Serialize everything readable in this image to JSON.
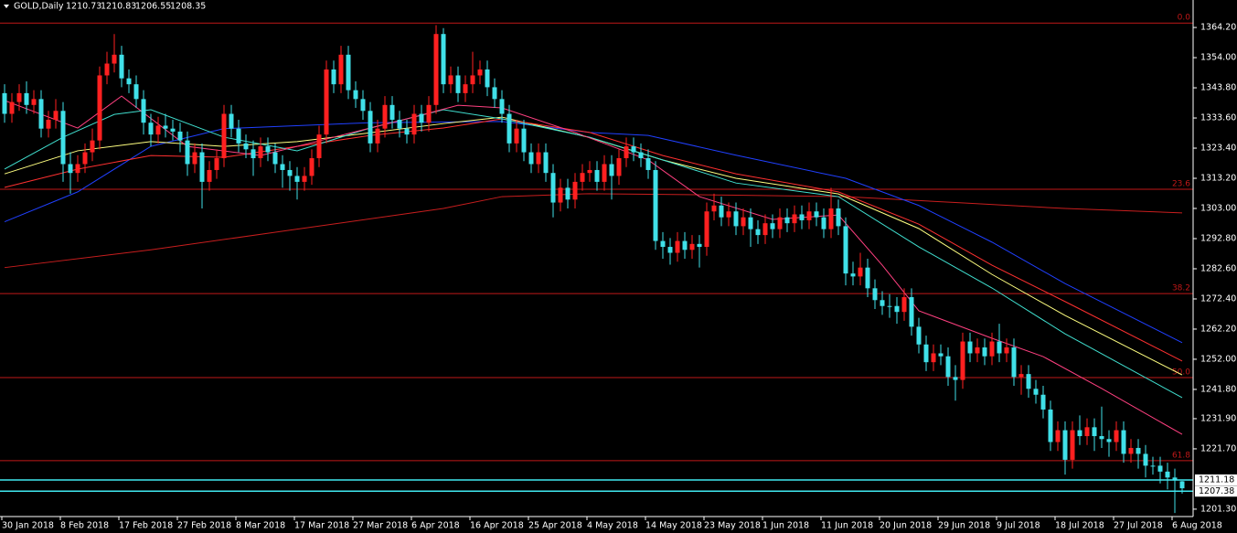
{
  "chart_data": {
    "type": "candlestick",
    "symbol": "GOLD,Daily",
    "bull_color": "#ff2020",
    "bear_color": "#40e0e8",
    "categories": [
      "30 Jan 2018",
      null,
      null,
      null,
      null,
      null,
      null,
      null,
      "8 Feb 2018",
      null,
      null,
      null,
      null,
      null,
      null,
      null,
      "17 Feb 2018",
      null,
      null,
      null,
      null,
      null,
      null,
      null,
      "27 Feb 2018",
      null,
      null,
      null,
      null,
      null,
      null,
      null,
      "8 Mar 2018",
      null,
      null,
      null,
      null,
      null,
      null,
      null,
      "17 Mar 2018",
      null,
      null,
      null,
      null,
      null,
      null,
      null,
      "27 Mar 2018",
      null,
      null,
      null,
      null,
      null,
      null,
      null,
      "6 Apr 2018",
      null,
      null,
      null,
      null,
      null,
      null,
      null,
      "16 Apr 2018",
      null,
      null,
      null,
      null,
      null,
      null,
      null,
      "25 Apr 2018",
      null,
      null,
      null,
      null,
      null,
      null,
      null,
      "4 May 2018",
      null,
      null,
      null,
      null,
      null,
      null,
      null,
      "14 May 2018",
      null,
      null,
      null,
      null,
      null,
      null,
      null,
      "23 May 2018",
      null,
      null,
      null,
      null,
      null,
      null,
      null,
      "1 Jun 2018",
      null,
      null,
      null,
      null,
      null,
      null,
      null,
      "11 Jun 2018",
      null,
      null,
      null,
      null,
      null,
      null,
      null,
      "20 Jun 2018",
      null,
      null,
      null,
      null,
      null,
      null,
      null,
      "29 Jun 2018",
      null,
      null,
      null,
      null,
      null,
      null,
      null,
      "9 Jul 2018",
      null,
      null,
      null,
      null,
      null,
      null,
      null,
      "18 Jul 2018",
      null,
      null,
      null,
      null,
      null,
      null,
      null,
      "27 Jul 2018",
      null,
      null,
      null,
      null,
      null,
      null,
      null,
      "6 Aug 2018",
      null
    ],
    "ohlc": [
      [
        1342,
        1345,
        1332,
        1335
      ],
      [
        1335,
        1342,
        1332,
        1339
      ],
      [
        1339,
        1345,
        1336,
        1342
      ],
      [
        1342,
        1346,
        1335,
        1338
      ],
      [
        1338,
        1343,
        1335,
        1340
      ],
      [
        1340,
        1343,
        1327,
        1330
      ],
      [
        1330,
        1336,
        1327,
        1333
      ],
      [
        1333,
        1340,
        1330,
        1336
      ],
      [
        1336,
        1339,
        1312,
        1318
      ],
      [
        1318,
        1322,
        1308,
        1315
      ],
      [
        1315,
        1321,
        1312,
        1318
      ],
      [
        1318,
        1325,
        1315,
        1322
      ],
      [
        1322,
        1330,
        1319,
        1326
      ],
      [
        1326,
        1351,
        1323,
        1348
      ],
      [
        1348,
        1356,
        1345,
        1352
      ],
      [
        1352,
        1362,
        1349,
        1355
      ],
      [
        1355,
        1358,
        1344,
        1347
      ],
      [
        1347,
        1350,
        1342,
        1345
      ],
      [
        1345,
        1348,
        1337,
        1340
      ],
      [
        1340,
        1343,
        1328,
        1332
      ],
      [
        1332,
        1335,
        1324,
        1328
      ],
      [
        1328,
        1334,
        1325,
        1331
      ],
      [
        1331,
        1335,
        1327,
        1330
      ],
      [
        1330,
        1333,
        1326,
        1329
      ],
      [
        1329,
        1332,
        1322,
        1326
      ],
      [
        1326,
        1329,
        1314,
        1318
      ],
      [
        1318,
        1325,
        1315,
        1322
      ],
      [
        1322,
        1325,
        1303,
        1312
      ],
      [
        1312,
        1319,
        1309,
        1316
      ],
      [
        1316,
        1323,
        1313,
        1320
      ],
      [
        1320,
        1338,
        1317,
        1335
      ],
      [
        1335,
        1338,
        1327,
        1330
      ],
      [
        1330,
        1333,
        1322,
        1325
      ],
      [
        1325,
        1328,
        1320,
        1323
      ],
      [
        1323,
        1326,
        1314,
        1320
      ],
      [
        1320,
        1327,
        1317,
        1324
      ],
      [
        1324,
        1327,
        1319,
        1322
      ],
      [
        1322,
        1325,
        1315,
        1318
      ],
      [
        1318,
        1321,
        1310,
        1316
      ],
      [
        1316,
        1319,
        1309,
        1314
      ],
      [
        1314,
        1317,
        1306,
        1312
      ],
      [
        1312,
        1317,
        1309,
        1314
      ],
      [
        1314,
        1323,
        1311,
        1320
      ],
      [
        1320,
        1331,
        1317,
        1328
      ],
      [
        1328,
        1353,
        1325,
        1350
      ],
      [
        1350,
        1353,
        1342,
        1345
      ],
      [
        1345,
        1358,
        1342,
        1355
      ],
      [
        1355,
        1358,
        1340,
        1343
      ],
      [
        1343,
        1346,
        1337,
        1340
      ],
      [
        1340,
        1343,
        1333,
        1336
      ],
      [
        1336,
        1339,
        1322,
        1325
      ],
      [
        1325,
        1333,
        1322,
        1330
      ],
      [
        1330,
        1341,
        1327,
        1338
      ],
      [
        1338,
        1341,
        1330,
        1333
      ],
      [
        1333,
        1336,
        1327,
        1330
      ],
      [
        1330,
        1333,
        1325,
        1328
      ],
      [
        1328,
        1338,
        1325,
        1335
      ],
      [
        1335,
        1338,
        1329,
        1332
      ],
      [
        1332,
        1341,
        1329,
        1338
      ],
      [
        1338,
        1365,
        1335,
        1362
      ],
      [
        1362,
        1364,
        1342,
        1345
      ],
      [
        1345,
        1351,
        1342,
        1348
      ],
      [
        1348,
        1351,
        1339,
        1342
      ],
      [
        1342,
        1348,
        1339,
        1345
      ],
      [
        1345,
        1356,
        1342,
        1348
      ],
      [
        1348,
        1353,
        1345,
        1350
      ],
      [
        1350,
        1353,
        1341,
        1344
      ],
      [
        1344,
        1347,
        1337,
        1340
      ],
      [
        1340,
        1343,
        1332,
        1335
      ],
      [
        1335,
        1338,
        1322,
        1325
      ],
      [
        1325,
        1333,
        1322,
        1330
      ],
      [
        1330,
        1333,
        1319,
        1322
      ],
      [
        1322,
        1325,
        1315,
        1318
      ],
      [
        1318,
        1325,
        1315,
        1322
      ],
      [
        1322,
        1325,
        1312,
        1315
      ],
      [
        1315,
        1318,
        1300,
        1305
      ],
      [
        1305,
        1313,
        1302,
        1310
      ],
      [
        1310,
        1313,
        1303,
        1306
      ],
      [
        1306,
        1315,
        1303,
        1312
      ],
      [
        1312,
        1318,
        1309,
        1315
      ],
      [
        1315,
        1319,
        1312,
        1316
      ],
      [
        1316,
        1319,
        1309,
        1312
      ],
      [
        1312,
        1321,
        1309,
        1318
      ],
      [
        1318,
        1321,
        1306,
        1314
      ],
      [
        1314,
        1323,
        1311,
        1320
      ],
      [
        1320,
        1327,
        1317,
        1324
      ],
      [
        1324,
        1327,
        1319,
        1322
      ],
      [
        1322,
        1325,
        1317,
        1320
      ],
      [
        1320,
        1323,
        1313,
        1316
      ],
      [
        1316,
        1319,
        1289,
        1292
      ],
      [
        1292,
        1295,
        1286,
        1290
      ],
      [
        1290,
        1293,
        1284,
        1288
      ],
      [
        1288,
        1295,
        1285,
        1292
      ],
      [
        1292,
        1295,
        1286,
        1289
      ],
      [
        1289,
        1294,
        1286,
        1291
      ],
      [
        1291,
        1294,
        1283,
        1290
      ],
      [
        1290,
        1305,
        1287,
        1302
      ],
      [
        1302,
        1308,
        1299,
        1304
      ],
      [
        1304,
        1307,
        1297,
        1300
      ],
      [
        1300,
        1305,
        1297,
        1302
      ],
      [
        1302,
        1305,
        1294,
        1297
      ],
      [
        1297,
        1303,
        1294,
        1300
      ],
      [
        1300,
        1303,
        1290,
        1296
      ],
      [
        1296,
        1299,
        1291,
        1294
      ],
      [
        1294,
        1301,
        1291,
        1298
      ],
      [
        1298,
        1301,
        1293,
        1296
      ],
      [
        1296,
        1303,
        1293,
        1300
      ],
      [
        1300,
        1303,
        1295,
        1298
      ],
      [
        1298,
        1304,
        1295,
        1301
      ],
      [
        1301,
        1304,
        1296,
        1299
      ],
      [
        1299,
        1305,
        1296,
        1302
      ],
      [
        1302,
        1305,
        1297,
        1300
      ],
      [
        1300,
        1303,
        1293,
        1296
      ],
      [
        1296,
        1310,
        1293,
        1303
      ],
      [
        1303,
        1306,
        1294,
        1297
      ],
      [
        1297,
        1300,
        1277,
        1281
      ],
      [
        1281,
        1285,
        1277,
        1280
      ],
      [
        1280,
        1288,
        1277,
        1283
      ],
      [
        1283,
        1286,
        1273,
        1276
      ],
      [
        1276,
        1279,
        1269,
        1272
      ],
      [
        1272,
        1275,
        1267,
        1270
      ],
      [
        1270,
        1274,
        1266,
        1270
      ],
      [
        1270,
        1273,
        1264,
        1268
      ],
      [
        1268,
        1276,
        1265,
        1273
      ],
      [
        1273,
        1276,
        1260,
        1263
      ],
      [
        1263,
        1266,
        1254,
        1257
      ],
      [
        1257,
        1260,
        1248,
        1251
      ],
      [
        1251,
        1257,
        1248,
        1254
      ],
      [
        1254,
        1257,
        1250,
        1253
      ],
      [
        1253,
        1256,
        1243,
        1246
      ],
      [
        1246,
        1250,
        1238,
        1245
      ],
      [
        1245,
        1261,
        1242,
        1258
      ],
      [
        1258,
        1261,
        1251,
        1254
      ],
      [
        1254,
        1259,
        1251,
        1256
      ],
      [
        1256,
        1259,
        1250,
        1253
      ],
      [
        1253,
        1261,
        1250,
        1258
      ],
      [
        1258,
        1264,
        1251,
        1254
      ],
      [
        1254,
        1259,
        1251,
        1256
      ],
      [
        1256,
        1259,
        1243,
        1246
      ],
      [
        1246,
        1250,
        1240,
        1247
      ],
      [
        1247,
        1250,
        1239,
        1242
      ],
      [
        1242,
        1245,
        1237,
        1240
      ],
      [
        1240,
        1243,
        1232,
        1235
      ],
      [
        1235,
        1238,
        1221,
        1224
      ],
      [
        1224,
        1231,
        1221,
        1228
      ],
      [
        1228,
        1231,
        1213,
        1218
      ],
      [
        1218,
        1231,
        1215,
        1228
      ],
      [
        1228,
        1233,
        1223,
        1226
      ],
      [
        1226,
        1232,
        1223,
        1229
      ],
      [
        1229,
        1232,
        1221,
        1226
      ],
      [
        1226,
        1236,
        1222,
        1225
      ],
      [
        1225,
        1228,
        1219,
        1224
      ],
      [
        1224,
        1231,
        1221,
        1228
      ],
      [
        1228,
        1231,
        1217,
        1220
      ],
      [
        1220,
        1225,
        1217,
        1222
      ],
      [
        1222,
        1225,
        1215,
        1220
      ],
      [
        1220,
        1223,
        1212,
        1216
      ],
      [
        1216,
        1219,
        1213,
        1216
      ],
      [
        1216,
        1219,
        1210,
        1214
      ],
      [
        1214,
        1217,
        1208,
        1212
      ],
      [
        1212,
        1215,
        1200,
        1211
      ],
      [
        1210.73,
        1210.83,
        1206.55,
        1208.35
      ]
    ],
    "series": [
      {
        "color": "#c81e1e",
        "x": [
          0,
          20,
          40,
          60,
          68,
          80,
          100,
          115,
          130,
          145,
          161
        ],
        "values": [
          1283,
          1289,
          1296,
          1303,
          1307,
          1308,
          1307.5,
          1307,
          1305,
          1303,
          1301.5
        ]
      },
      {
        "color": "#2040ff",
        "x": [
          0,
          10,
          20,
          30,
          50,
          68,
          80,
          88,
          100,
          115,
          125,
          135,
          145,
          161
        ],
        "values": [
          1298.5,
          1308.6,
          1324,
          1330,
          1332,
          1332.4,
          1328.7,
          1327.7,
          1321,
          1313.2,
          1304,
          1291.6,
          1277.6,
          1257.6
        ]
      },
      {
        "color": "#ffff80",
        "x": [
          0,
          10,
          20,
          30,
          40,
          50,
          60,
          68,
          80,
          90,
          100,
          114,
          125,
          135,
          145,
          161
        ],
        "values": [
          1314.7,
          1322.5,
          1325.6,
          1324,
          1325.6,
          1328.6,
          1331.7,
          1333.9,
          1327,
          1319.4,
          1313.2,
          1307.9,
          1296.2,
          1280.7,
          1266.8,
          1246.7
        ]
      },
      {
        "color": "#ff3030",
        "x": [
          0,
          10,
          20,
          30,
          50,
          60,
          68,
          80,
          90,
          100,
          114,
          125,
          135,
          145,
          161
        ],
        "values": [
          1310.1,
          1316.3,
          1320.9,
          1320.3,
          1327.7,
          1330.2,
          1333.3,
          1328.7,
          1320.9,
          1314.7,
          1308.6,
          1297.7,
          1283.8,
          1271.5,
          1251.4
        ]
      },
      {
        "color": "#40e0d0",
        "x": [
          0,
          8,
          15,
          20,
          30,
          40,
          50,
          60,
          68,
          80,
          90,
          100,
          114,
          125,
          135,
          145,
          161
        ],
        "values": [
          1316.3,
          1327.1,
          1334.8,
          1336.4,
          1327.1,
          1322.5,
          1330.2,
          1336.4,
          1333.3,
          1327.1,
          1319.4,
          1311.6,
          1307,
          1290,
          1276.1,
          1260.6,
          1239
        ]
      },
      {
        "color": "#ff4080",
        "x": [
          0,
          10,
          16,
          25,
          35,
          45,
          55,
          62,
          68,
          78,
          88,
          95,
          105,
          114,
          120,
          125,
          135,
          142,
          150,
          161
        ],
        "values": [
          1339.5,
          1330.2,
          1341,
          1324,
          1320.9,
          1327.1,
          1333.3,
          1337.9,
          1337,
          1328.7,
          1319.4,
          1307,
          1299.3,
          1300.8,
          1283.8,
          1268.4,
          1259.1,
          1252.9,
          1242.1,
          1226.6
        ]
      }
    ],
    "fib_color": "#c01818",
    "fib_levels": [
      {
        "label": "0.0",
        "value": 1365.7
      },
      {
        "label": "23.6",
        "value": 1309.5
      },
      {
        "label": "38.2",
        "value": 1274.2
      },
      {
        "label": "50.0",
        "value": 1245.8
      },
      {
        "label": "61.8",
        "value": 1217.7
      }
    ],
    "price_line_color": "#40e8f0",
    "price_lines": [
      1211.18,
      1207.38
    ],
    "ylim": [
      1198.8,
      1373.5
    ],
    "yticks": [
      {
        "value": 1364.2,
        "label": "1364.20"
      },
      {
        "value": 1354,
        "label": "1354.00"
      },
      {
        "value": 1343.8,
        "label": "1343.80"
      },
      {
        "value": 1333.6,
        "label": "1333.60"
      },
      {
        "value": 1323.4,
        "label": "1323.40"
      },
      {
        "value": 1313.2,
        "label": "1313.20"
      },
      {
        "value": 1303,
        "label": "1303.00"
      },
      {
        "value": 1292.8,
        "label": "1292.80"
      },
      {
        "value": 1282.6,
        "label": "1282.60"
      },
      {
        "value": 1272.4,
        "label": "1272.40"
      },
      {
        "value": 1262.2,
        "label": "1262.20"
      },
      {
        "value": 1252,
        "label": "1252.00"
      },
      {
        "value": 1241.8,
        "label": "1241.80"
      },
      {
        "value": 1231.9,
        "label": "1231.90"
      },
      {
        "value": 1221.7,
        "label": "1221.70"
      },
      {
        "value": 1201.3,
        "label": "1201.30"
      }
    ]
  }
}
